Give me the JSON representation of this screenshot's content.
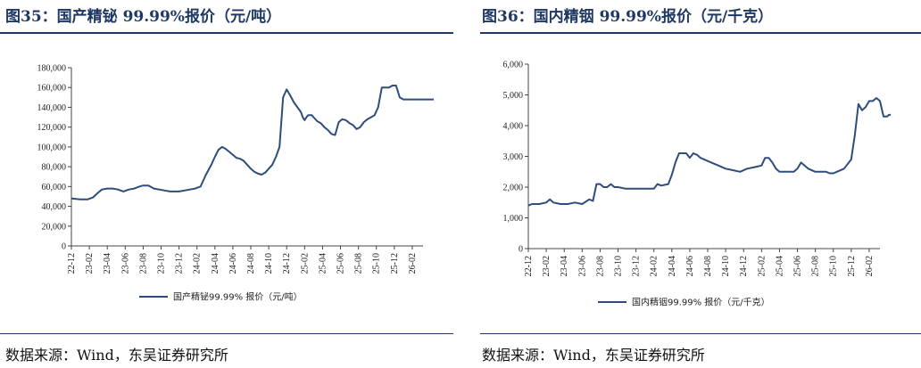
{
  "charts": [
    {
      "title": "图35：国产精铋 99.99%报价（元/吨）",
      "source": "数据来源：Wind，东吴证券研究所"
    },
    {
      "title": "图36：国内精铟 99.99%报价（元/千克）",
      "source": "数据来源：Wind，东吴证券研究所"
    }
  ],
  "chart_data": [
    {
      "type": "line",
      "title": "",
      "ylim": [
        0,
        180000
      ],
      "yticks": [
        "0",
        "20,000",
        "40,000",
        "60,000",
        "80,000",
        "100,000",
        "120,000",
        "140,000",
        "160,000",
        "180,000"
      ],
      "xticks": [
        "22-12",
        "23-02",
        "23-04",
        "23-06",
        "23-08",
        "23-10",
        "23-12",
        "24-02",
        "24-04",
        "24-06",
        "24-08",
        "24-10",
        "24-12",
        "25-02",
        "25-04",
        "25-06",
        "25-08",
        "25-10",
        "25-12",
        "26-02"
      ],
      "legend": "top-bottom",
      "grid": false,
      "color": "#2e4d7b",
      "series": [
        {
          "name": "国产精铋99.99% 报价（元/吨）",
          "x": [
            0,
            0.5,
            0.9,
            1.2,
            1.5,
            1.7,
            2.0,
            2.3,
            2.6,
            2.9,
            3.2,
            3.5,
            3.8,
            4.0,
            4.3,
            4.6,
            4.9,
            5.2,
            5.5,
            5.8,
            6.0,
            6.3,
            6.6,
            6.9,
            7.2,
            7.5,
            7.8,
            8.0,
            8.2,
            8.4,
            8.6,
            8.8,
            9.0,
            9.2,
            9.4,
            9.6,
            9.8,
            10.0,
            10.2,
            10.4,
            10.6,
            10.8,
            11.0,
            11.2,
            11.4,
            11.6,
            11.8,
            12.0,
            12.2,
            12.4,
            12.6,
            12.8,
            12.9,
            13.0,
            13.1,
            13.2,
            13.3,
            13.4,
            13.5,
            13.7,
            13.9,
            14.1,
            14.3,
            14.5,
            14.7,
            14.9,
            15.1,
            15.3,
            15.5,
            15.7,
            15.9,
            16.1,
            16.3,
            16.5,
            16.7,
            16.9,
            17.1,
            17.3,
            17.5,
            17.7,
            17.9,
            18.1,
            18.3,
            18.5,
            18.7,
            18.9,
            19.1,
            19.3,
            19.5,
            19.7,
            19.9,
            20.1,
            20.2
          ],
          "values": [
            48000,
            47000,
            47000,
            49000,
            54000,
            57000,
            58000,
            58000,
            57000,
            55000,
            57000,
            58000,
            60000,
            61000,
            61000,
            58000,
            57000,
            56000,
            55000,
            55000,
            55000,
            56000,
            57000,
            58000,
            60000,
            72000,
            82000,
            90000,
            97000,
            100000,
            98000,
            95000,
            92000,
            89000,
            88000,
            86000,
            82000,
            78000,
            75000,
            73000,
            72000,
            74000,
            78000,
            82000,
            90000,
            100000,
            150000,
            158000,
            152000,
            145000,
            140000,
            135000,
            130000,
            127000,
            130000,
            132000,
            132000,
            132000,
            130000,
            126000,
            124000,
            120000,
            117000,
            113000,
            112000,
            125000,
            128000,
            127000,
            124000,
            122000,
            118000,
            120000,
            125000,
            128000,
            130000,
            132000,
            140000,
            160000,
            160000,
            160000,
            162000,
            162000,
            150000,
            148000,
            148000,
            148000,
            148000,
            148000,
            148000,
            148000,
            148000,
            148000,
            148000
          ]
        }
      ]
    },
    {
      "type": "line",
      "title": "",
      "ylim": [
        0,
        6000
      ],
      "yticks": [
        "0",
        "1,000",
        "2,000",
        "3,000",
        "4,000",
        "5,000",
        "6,000"
      ],
      "xticks": [
        "22-12",
        "23-02",
        "23-04",
        "23-06",
        "23-08",
        "23-10",
        "23-12",
        "24-02",
        "24-04",
        "24-06",
        "24-08",
        "24-10",
        "24-12",
        "25-02",
        "25-04",
        "25-06",
        "25-08",
        "25-10",
        "25-12",
        "26-02"
      ],
      "legend": "top-bottom",
      "grid": false,
      "color": "#2e4d7b",
      "series": [
        {
          "name": "国内精铟99.99% 报价（元/千克）",
          "x": [
            0,
            0.2,
            0.6,
            1.0,
            1.2,
            1.4,
            1.8,
            2.2,
            2.6,
            3.0,
            3.4,
            3.6,
            3.8,
            4.0,
            4.2,
            4.4,
            4.6,
            4.8,
            5.0,
            5.4,
            5.8,
            6.2,
            6.6,
            7.0,
            7.2,
            7.4,
            7.8,
            8.0,
            8.2,
            8.4,
            8.6,
            8.8,
            9.0,
            9.2,
            9.4,
            9.6,
            9.8,
            10.0,
            10.2,
            10.6,
            11.0,
            11.4,
            11.8,
            12.2,
            12.6,
            13.0,
            13.2,
            13.4,
            13.6,
            13.8,
            14.0,
            14.2,
            14.4,
            14.6,
            14.8,
            15.0,
            15.2,
            15.6,
            16.0,
            16.4,
            16.6,
            16.8,
            17.0,
            17.2,
            17.6,
            18.0,
            18.2,
            18.4,
            18.6,
            18.8,
            19.0,
            19.2,
            19.4,
            19.6,
            19.8,
            20.0,
            20.1,
            20.2
          ],
          "values": [
            1400,
            1450,
            1450,
            1500,
            1600,
            1500,
            1450,
            1450,
            1500,
            1450,
            1600,
            1550,
            2100,
            2100,
            2000,
            2000,
            2100,
            2000,
            2000,
            1950,
            1950,
            1950,
            1950,
            1950,
            2100,
            2050,
            2100,
            2400,
            2800,
            3100,
            3100,
            3100,
            2950,
            3100,
            3050,
            2950,
            2900,
            2850,
            2800,
            2700,
            2600,
            2550,
            2500,
            2600,
            2650,
            2700,
            2950,
            2950,
            2800,
            2600,
            2500,
            2500,
            2500,
            2500,
            2500,
            2600,
            2800,
            2600,
            2500,
            2500,
            2500,
            2450,
            2450,
            2500,
            2600,
            2900,
            3700,
            4700,
            4500,
            4600,
            4800,
            4800,
            4900,
            4800,
            4300,
            4300,
            4350,
            4350
          ]
        }
      ]
    }
  ]
}
